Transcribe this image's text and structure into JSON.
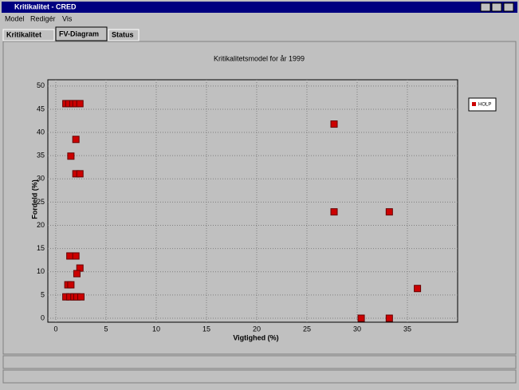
{
  "window": {
    "title": "Kritikalitet - CRED",
    "menu": [
      "Model",
      "Redigér",
      "Vis"
    ],
    "tabs": [
      "Kritikalitet",
      "FV-Diagram",
      "Status"
    ]
  },
  "chart_data": {
    "type": "scatter",
    "title": "Kritikalitetsmodel for år 1999",
    "x_label": "Vigtighed (%)",
    "y_label": "Fordeld (%)",
    "x": [
      1.0,
      1.3,
      1.7,
      2.0,
      2.4,
      2.0,
      1.5,
      2.0,
      2.4,
      27.7,
      27.7,
      33.2,
      1.4,
      2.0,
      2.4,
      2.1,
      1.2,
      1.5,
      1.0,
      1.4,
      1.8,
      2.1,
      2.5,
      36.0,
      30.4,
      33.2
    ],
    "series": [
      {
        "name": "HOLP",
        "color": "#cc0000",
        "values": [
          46.2,
          46.2,
          46.2,
          46.2,
          46.2,
          38.5,
          34.9,
          31.1,
          31.1,
          41.8,
          22.9,
          22.9,
          13.4,
          13.4,
          10.8,
          9.6,
          7.2,
          7.2,
          4.6,
          4.6,
          4.6,
          4.6,
          4.6,
          6.4,
          0,
          0
        ]
      }
    ],
    "xlim": [
      0,
      40
    ],
    "ylim": [
      0,
      51
    ],
    "xticks": [
      0,
      5,
      10,
      15,
      20,
      25,
      30,
      35
    ],
    "yticks": [
      0,
      5,
      10,
      15,
      20,
      25,
      30,
      35,
      40,
      45,
      50
    ],
    "grid": true,
    "legend": "right"
  }
}
